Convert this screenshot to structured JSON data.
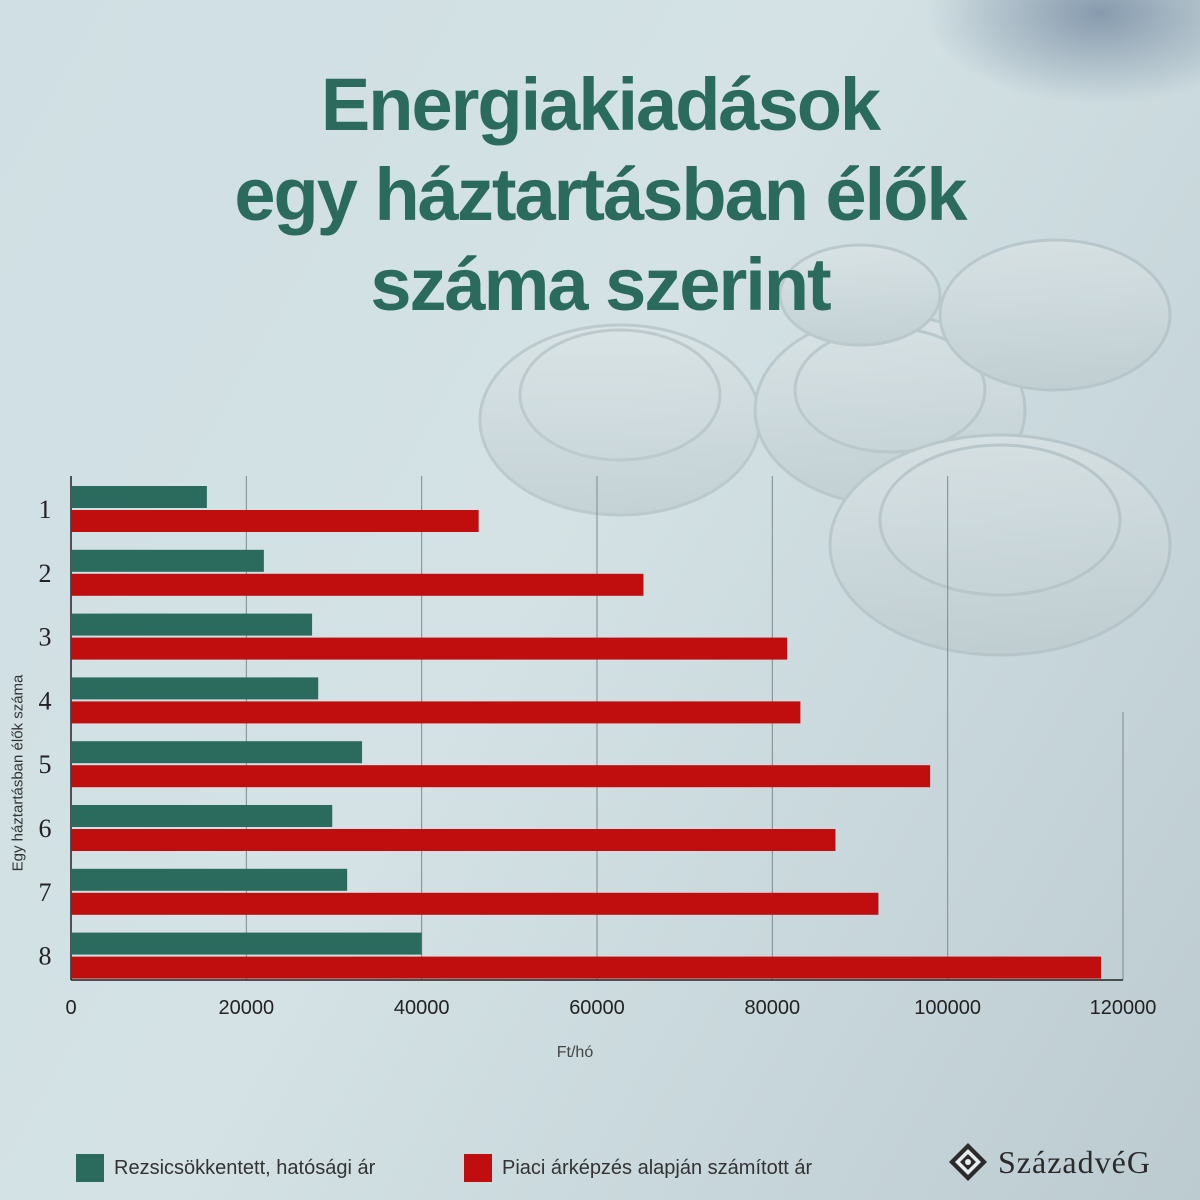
{
  "title_lines": [
    "Energiakiadások",
    "egy háztartásban élők",
    "száma szerint"
  ],
  "chart_data": {
    "type": "bar",
    "orientation": "horizontal",
    "categories": [
      "1",
      "2",
      "3",
      "4",
      "5",
      "6",
      "7",
      "8"
    ],
    "series": [
      {
        "name": "Rezsicsökkentett, hatósági ár",
        "color": "#2a6b5e",
        "values": [
          15500,
          22000,
          27500,
          28200,
          33200,
          29800,
          31500,
          40000
        ]
      },
      {
        "name": "Piaci árképzés alapján számított ár",
        "color": "#c00d0d",
        "values": [
          46500,
          65300,
          81700,
          83200,
          98000,
          87200,
          92100,
          117500
        ]
      }
    ],
    "xlim": [
      0,
      120000
    ],
    "xticks": [
      0,
      20000,
      40000,
      60000,
      80000,
      100000,
      120000
    ],
    "xlabel": "Ft/hó",
    "ylabel": "Egy háztartásban élők száma",
    "grid": "vertical",
    "legend_position": "bottom"
  },
  "logo": {
    "text": "SzázadvéG"
  }
}
